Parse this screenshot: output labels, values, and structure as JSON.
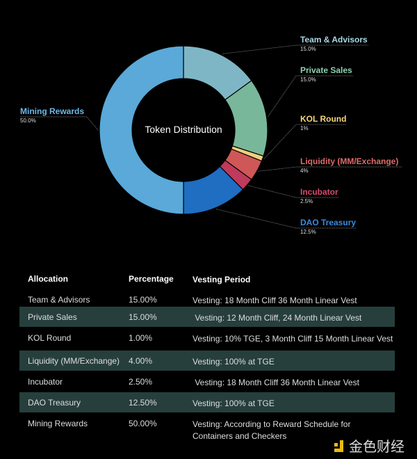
{
  "chart_data": {
    "type": "pie",
    "title": "Token Distribution",
    "categories": [
      "Team & Advisors",
      "Private Sales",
      "KOL Round",
      "Liquidity (MM/Exchange)",
      "Incubator",
      "DAO Treasury",
      "Mining Rewards"
    ],
    "values": [
      15.0,
      15.0,
      1,
      4,
      2.5,
      12.5,
      50.0
    ],
    "value_labels": [
      "15.0%",
      "15.0%",
      "1%",
      "4%",
      "2.5%",
      "12.5%",
      "50.0%"
    ],
    "colors": [
      "#7fb6c6",
      "#79b79a",
      "#efcf7c",
      "#cf5757",
      "#bf3a5c",
      "#1f6ec2",
      "#5aa9d9"
    ],
    "label_colors": [
      "#a9d9e8",
      "#8fd2b0",
      "#f4d67a",
      "#e06a6a",
      "#d54b6c",
      "#3b8ad9",
      "#6cb9e9"
    ]
  },
  "table": {
    "headers": [
      "Allocation",
      "Percentage",
      "Vesting Period"
    ],
    "rows": [
      [
        "Team & Advisors",
        "15.00%",
        "Vesting: 18 Month Cliff 36 Month Linear Vest"
      ],
      [
        "Private Sales",
        "15.00%",
        " Vesting: 12 Month Cliff, 24 Month Linear Vest"
      ],
      [
        "KOL Round",
        "1.00%",
        "Vesting: 10% TGE, 3 Month Cliff 15 Month Linear Vest"
      ],
      [
        "Liquidity (MM/Exchange)",
        "4.00%",
        "Vesting: 100% at TGE"
      ],
      [
        "Incubator",
        "2.50%",
        " Vesting: 18 Month Cliff 36 Month Linear Vest"
      ],
      [
        "DAO Treasury",
        "12.50%",
        "Vesting: 100% at TGE"
      ],
      [
        "Mining Rewards",
        "50.00%",
        "Vesting: According to Reward Schedule for Containers and Checkers"
      ]
    ]
  },
  "watermark": "金色财经"
}
